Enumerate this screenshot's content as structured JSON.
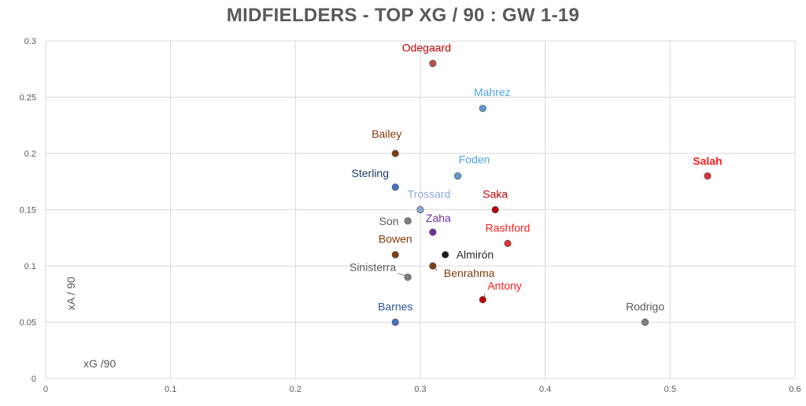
{
  "chart_data": {
    "type": "scatter",
    "title": "MIDFIELDERS - TOP XG / 90 : GW 1-19",
    "xlabel": "xG /90",
    "ylabel": "xA / 90",
    "xlim": [
      0,
      0.6
    ],
    "ylim": [
      0,
      0.3
    ],
    "x_ticks": [
      "0",
      "0.1",
      "0.2",
      "0.3",
      "0.4",
      "0.5",
      "0.6"
    ],
    "y_ticks": [
      "0",
      "0.05",
      "0.1",
      "0.15",
      "0.2",
      "0.25",
      "0.3"
    ],
    "grid": true,
    "points": [
      {
        "label": "Odegaard",
        "x": 0.31,
        "y": 0.28,
        "color": "#c0504d",
        "label_color": "#c00000"
      },
      {
        "label": "Mahrez",
        "x": 0.35,
        "y": 0.24,
        "color": "#5b9bd5",
        "label_color": "#4da6e0"
      },
      {
        "label": "Bailey",
        "x": 0.28,
        "y": 0.2,
        "color": "#843c0c",
        "label_color": "#843c0c"
      },
      {
        "label": "Foden",
        "x": 0.33,
        "y": 0.18,
        "color": "#5b9bd5",
        "label_color": "#4da6e0"
      },
      {
        "label": "Salah",
        "x": 0.53,
        "y": 0.18,
        "color": "#e03030",
        "label_color": "#ff2020",
        "bold": true
      },
      {
        "label": "Sterling",
        "x": 0.28,
        "y": 0.17,
        "color": "#4472c4",
        "label_color": "#1f3864"
      },
      {
        "label": "Trossard",
        "x": 0.3,
        "y": 0.15,
        "color": "#8faadc",
        "label_color": "#8faadc"
      },
      {
        "label": "Saka",
        "x": 0.36,
        "y": 0.15,
        "color": "#c00000",
        "label_color": "#c00000"
      },
      {
        "label": "Son",
        "x": 0.29,
        "y": 0.14,
        "color": "#7f7f7f",
        "label_color": "#595959"
      },
      {
        "label": "Zaha",
        "x": 0.31,
        "y": 0.13,
        "color": "#7030a0",
        "label_color": "#7030a0"
      },
      {
        "label": "Rashford",
        "x": 0.37,
        "y": 0.12,
        "color": "#e03030",
        "label_color": "#ff2020"
      },
      {
        "label": "Bowen",
        "x": 0.28,
        "y": 0.11,
        "color": "#843c0c",
        "label_color": "#843c0c"
      },
      {
        "label": "Almirón",
        "x": 0.32,
        "y": 0.11,
        "color": "#1a1a1a",
        "label_color": "#262626"
      },
      {
        "label": "Benrahma",
        "x": 0.31,
        "y": 0.1,
        "color": "#843c0c",
        "label_color": "#843c0c"
      },
      {
        "label": "Sinisterra",
        "x": 0.29,
        "y": 0.09,
        "color": "#7f7f7f",
        "label_color": "#595959"
      },
      {
        "label": "Antony",
        "x": 0.35,
        "y": 0.07,
        "color": "#c00000",
        "label_color": "#ff2020"
      },
      {
        "label": "Barnes",
        "x": 0.28,
        "y": 0.05,
        "color": "#4472c4",
        "label_color": "#2f5597"
      },
      {
        "label": "Rodrigo",
        "x": 0.48,
        "y": 0.05,
        "color": "#7f7f7f",
        "label_color": "#595959"
      }
    ]
  }
}
